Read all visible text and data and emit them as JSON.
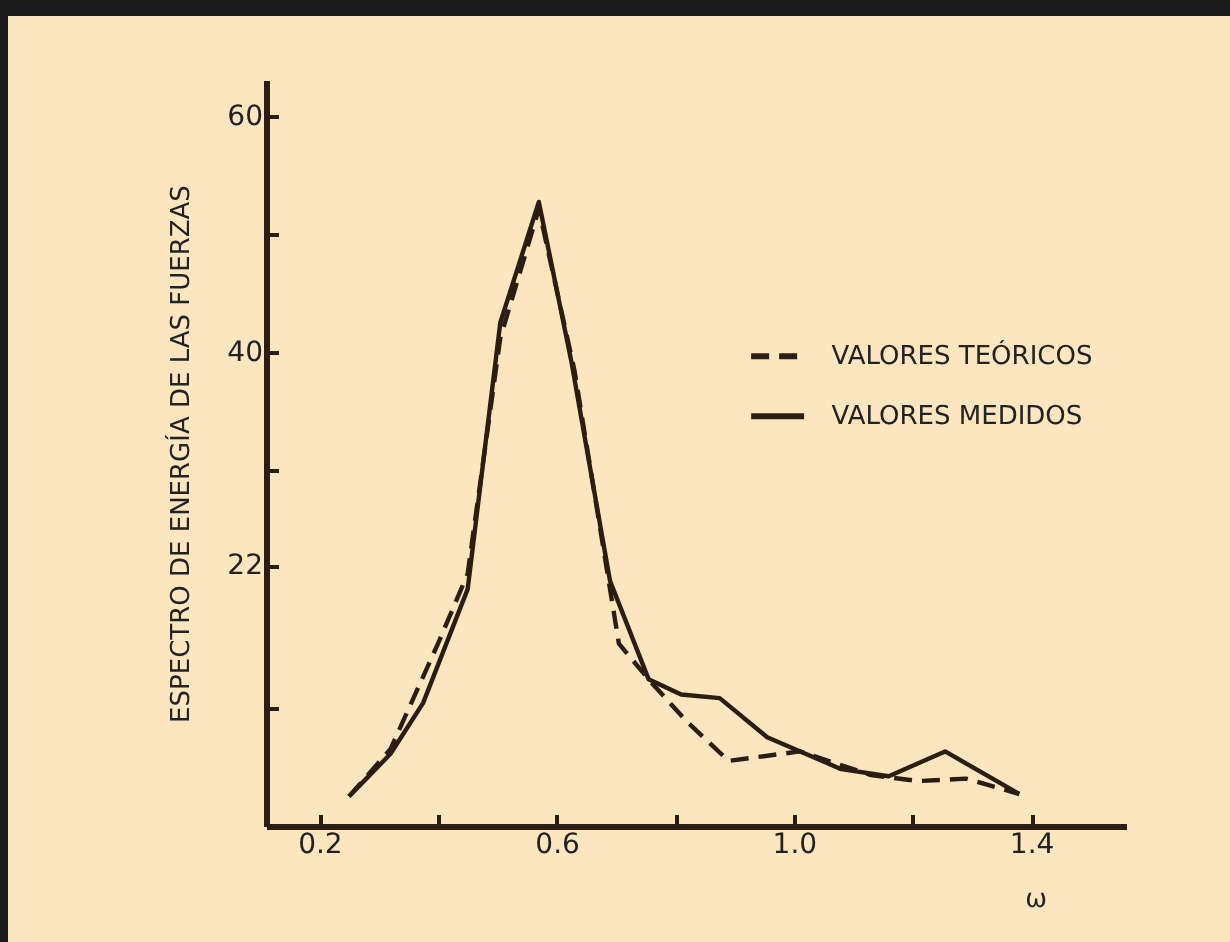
{
  "chart_data": {
    "type": "line",
    "xlabel": "ω",
    "ylabel": "ESPECTRO DE ENERGÍA DE LAS FUERZAS",
    "xlim": [
      0.11,
      1.56
    ],
    "ylim": [
      0,
      63
    ],
    "xticks": [
      {
        "value": 0.2,
        "label": "0.2"
      },
      {
        "value": 0.4,
        "label": null
      },
      {
        "value": 0.6,
        "label": "0.6"
      },
      {
        "value": 0.8,
        "label": null
      },
      {
        "value": 1.0,
        "label": "1.0"
      },
      {
        "value": 1.2,
        "label": null
      },
      {
        "value": 1.4,
        "label": "1.4"
      }
    ],
    "yticks": [
      {
        "value": 10,
        "label": null
      },
      22,
      {
        "value": 30,
        "label": null
      },
      {
        "value": 40,
        "label": "40"
      },
      {
        "value": 50,
        "label": null
      },
      {
        "value": 60,
        "label": "60"
      }
    ],
    "grid": false,
    "legend": "right",
    "marker": "none",
    "series": [
      {
        "name": "VALORES TEÓRICOS",
        "color": "#2b1d14",
        "line_style": "dashed",
        "x": [
          0.25,
          0.32,
          0.4,
          0.45,
          0.505,
          0.57,
          0.63,
          0.705,
          0.76,
          0.82,
          0.89,
          1.01,
          1.13,
          1.21,
          1.29,
          1.38
        ],
        "values": [
          2.5,
          6.5,
          15.4,
          21.3,
          41.2,
          52.1,
          38.5,
          15.4,
          12.1,
          8.8,
          5.5,
          6.3,
          4.3,
          3.8,
          4.0,
          2.7
        ]
      },
      {
        "name": "VALORES MEDIDOS",
        "color": "#2b1d14",
        "line_style": "solid",
        "x": [
          0.25,
          0.32,
          0.375,
          0.45,
          0.505,
          0.57,
          0.625,
          0.69,
          0.755,
          0.81,
          0.875,
          0.955,
          1.08,
          1.16,
          1.255,
          1.38
        ],
        "values": [
          2.5,
          6.1,
          10.4,
          20.0,
          42.5,
          52.7,
          39.2,
          20.7,
          12.4,
          11.1,
          10.8,
          7.5,
          4.8,
          4.2,
          6.3,
          2.7
        ]
      }
    ]
  }
}
